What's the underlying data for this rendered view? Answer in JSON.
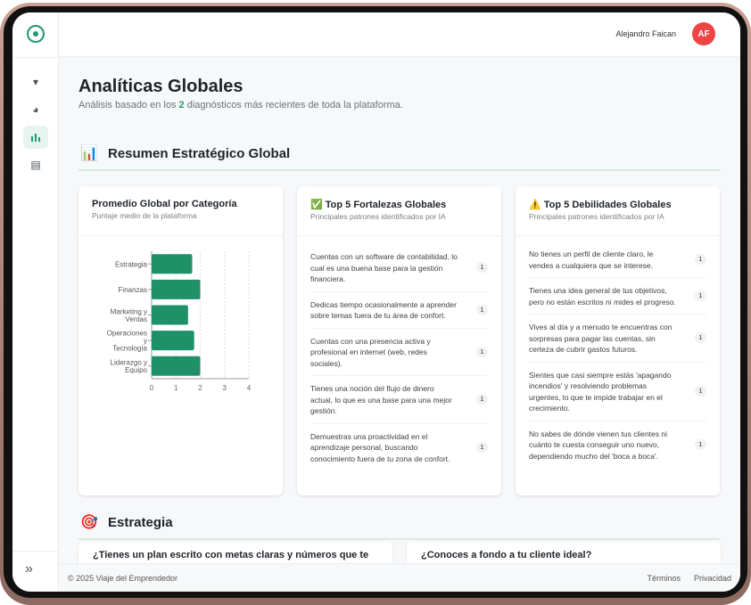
{
  "header": {
    "user_name": "Alejandro Faican",
    "avatar_initials": "AF"
  },
  "sidebar": {
    "items": [
      {
        "icon": "filter-icon",
        "glyph": "▾"
      },
      {
        "icon": "pie-chart-icon",
        "glyph": "◕"
      },
      {
        "icon": "bar-chart-icon",
        "glyph": "▮",
        "active": true
      },
      {
        "icon": "building-icon",
        "glyph": "▤"
      }
    ],
    "collapse_glyph": "»"
  },
  "page": {
    "title": "Analíticas Globales",
    "subtitle_pre": "Análisis basado en los ",
    "subtitle_count": "2",
    "subtitle_post": " diagnósticos más recientes de toda la plataforma."
  },
  "summary": {
    "icon": "📊",
    "title": "Resumen Estratégico Global"
  },
  "chart_card": {
    "title": "Promedio Global por Categoría",
    "subtitle": "Puntaje medio de la plataforma"
  },
  "chart_data": {
    "type": "bar",
    "orientation": "horizontal",
    "categories": [
      "Estrategia",
      "Finanzas",
      "Marketing y Ventas",
      "Operaciones y Tecnología",
      "Liderazgo y Equipo"
    ],
    "values": [
      1.67,
      2.0,
      1.5,
      1.75,
      2.0
    ],
    "xlim": [
      0,
      4
    ],
    "xticks": [
      "0",
      "1",
      "2",
      "3",
      "4"
    ],
    "grid": true,
    "color": "#1f9168"
  },
  "strengths": {
    "icon": "✅",
    "title": "Top 5 Fortalezas Globales",
    "subtitle": "Principales patrones identificados por IA",
    "items": [
      {
        "text": "Cuentas con un software de contabilidad, lo cual es una buena base para la gestión financiera.",
        "count": "1"
      },
      {
        "text": "Dedicas tiempo ocasionalmente a aprender sobre temas fuera de tu área de confort.",
        "count": "1"
      },
      {
        "text": "Cuentas con una presencia activa y profesional en internet (web, redes sociales).",
        "count": "1"
      },
      {
        "text": "Tienes una noción del flujo de dinero actual, lo que es una base para una mejor gestión.",
        "count": "1"
      },
      {
        "text": "Demuestras una proactividad en el aprendizaje personal, buscando conocimiento fuera de tu zona de confort.",
        "count": "1"
      }
    ]
  },
  "weaknesses": {
    "icon": "⚠️",
    "title": "Top 5 Debilidades Globales",
    "subtitle": "Principales patrones identificados por IA",
    "items": [
      {
        "text": "No tienes un perfil de cliente claro, le vendes a cualquiera que se interese.",
        "count": "1"
      },
      {
        "text": "Tienes una idea general de tus objetivos, pero no están escritos ni mides el progreso.",
        "count": "1"
      },
      {
        "text": "Vives al día y a menudo te encuentras con sorpresas para pagar las cuentas, sin certeza de cubrir gastos futuros.",
        "count": "1"
      },
      {
        "text": "Sientes que casi siempre estás 'apagando incendios' y resolviendo problemas urgentes, lo que te impide trabajar en el crecimiento.",
        "count": "1"
      },
      {
        "text": "No sabes de dónde vienen tus clientes ni cuánto te cuesta conseguir uno nuevo, dependiendo mucho del 'boca a boca'.",
        "count": "1"
      }
    ]
  },
  "strategy": {
    "icon": "🎯",
    "title": "Estrategia",
    "questions": [
      "¿Tienes un plan escrito con metas claras y números que te",
      "¿Conoces a fondo a tu cliente ideal?"
    ]
  },
  "footer": {
    "copyright": "© 2025 Viaje del Emprendedor",
    "terms": "Términos",
    "privacy": "Privacidad"
  }
}
